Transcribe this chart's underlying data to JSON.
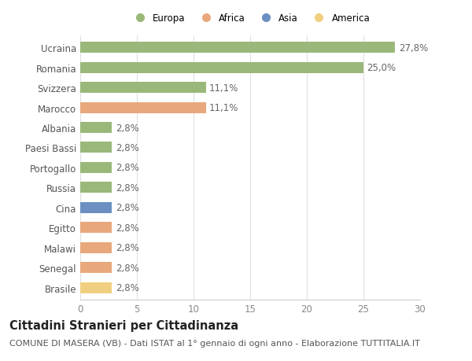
{
  "categories": [
    "Brasile",
    "Senegal",
    "Malawi",
    "Egitto",
    "Cina",
    "Russia",
    "Portogallo",
    "Paesi Bassi",
    "Albania",
    "Marocco",
    "Svizzera",
    "Romania",
    "Ucraina"
  ],
  "values": [
    2.8,
    2.8,
    2.8,
    2.8,
    2.8,
    2.8,
    2.8,
    2.8,
    2.8,
    11.1,
    11.1,
    25.0,
    27.8
  ],
  "labels": [
    "2,8%",
    "2,8%",
    "2,8%",
    "2,8%",
    "2,8%",
    "2,8%",
    "2,8%",
    "2,8%",
    "2,8%",
    "11,1%",
    "11,1%",
    "25,0%",
    "27,8%"
  ],
  "colors": [
    "#f0d080",
    "#e8a87c",
    "#e8a87c",
    "#e8a87c",
    "#6b8fc0",
    "#9ab87a",
    "#9ab87a",
    "#9ab87a",
    "#9ab87a",
    "#e8a87c",
    "#9ab87a",
    "#9ab87a",
    "#9ab87a"
  ],
  "legend": [
    {
      "label": "Europa",
      "color": "#9ab87a"
    },
    {
      "label": "Africa",
      "color": "#e8a87c"
    },
    {
      "label": "Asia",
      "color": "#6b8fc0"
    },
    {
      "label": "America",
      "color": "#f0d080"
    }
  ],
  "xlim": [
    0,
    30
  ],
  "xticks": [
    0,
    5,
    10,
    15,
    20,
    25,
    30
  ],
  "title": "Cittadini Stranieri per Cittadinanza",
  "subtitle": "COMUNE DI MASERA (VB) - Dati ISTAT al 1° gennaio di ogni anno - Elaborazione TUTTITALIA.IT",
  "background_color": "#ffffff",
  "grid_color": "#e0e0e0",
  "bar_height": 0.55,
  "label_fontsize": 8.5,
  "tick_fontsize": 8.5,
  "title_fontsize": 10.5,
  "subtitle_fontsize": 8.0
}
